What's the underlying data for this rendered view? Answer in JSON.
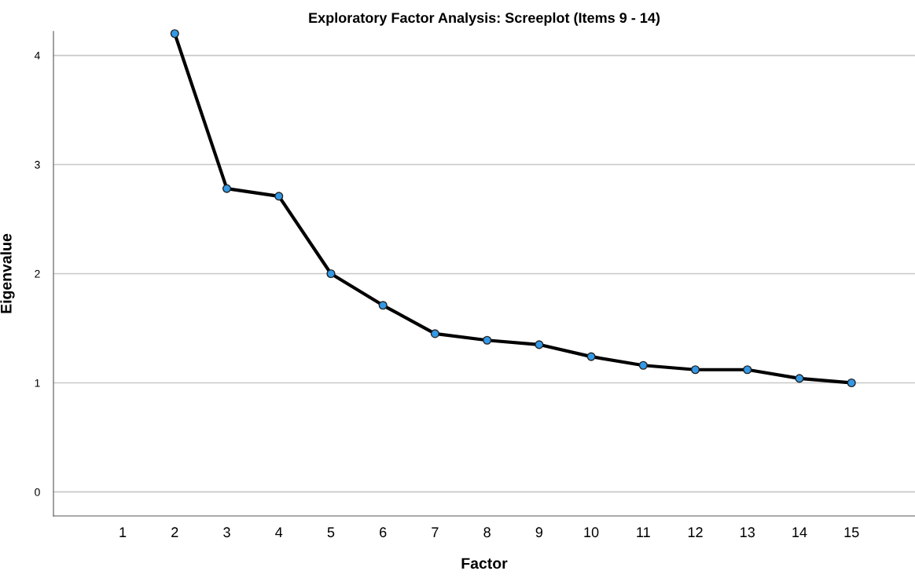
{
  "chart_data": {
    "type": "line",
    "title": "Exploratory Factor Analysis: Screeplot (Items 9 - 14)",
    "xlabel": "Factor",
    "ylabel": "Eigenvalue",
    "categories": [
      "1",
      "2",
      "3",
      "4",
      "5",
      "6",
      "7",
      "8",
      "9",
      "10",
      "11",
      "12",
      "13",
      "14",
      "15"
    ],
    "series": [
      {
        "color": "#000000",
        "values": [
          null,
          4.2,
          2.78,
          2.71,
          2.0,
          1.71,
          1.45,
          1.39,
          1.35,
          1.24,
          1.16,
          1.12,
          1.12,
          1.04,
          1.0
        ]
      }
    ],
    "ylim": [
      -0.22,
      4.22
    ],
    "yticks": [
      0,
      1,
      2,
      3,
      4
    ],
    "grid": "y",
    "marker": "circle",
    "line_style": "solid",
    "legend": false
  }
}
